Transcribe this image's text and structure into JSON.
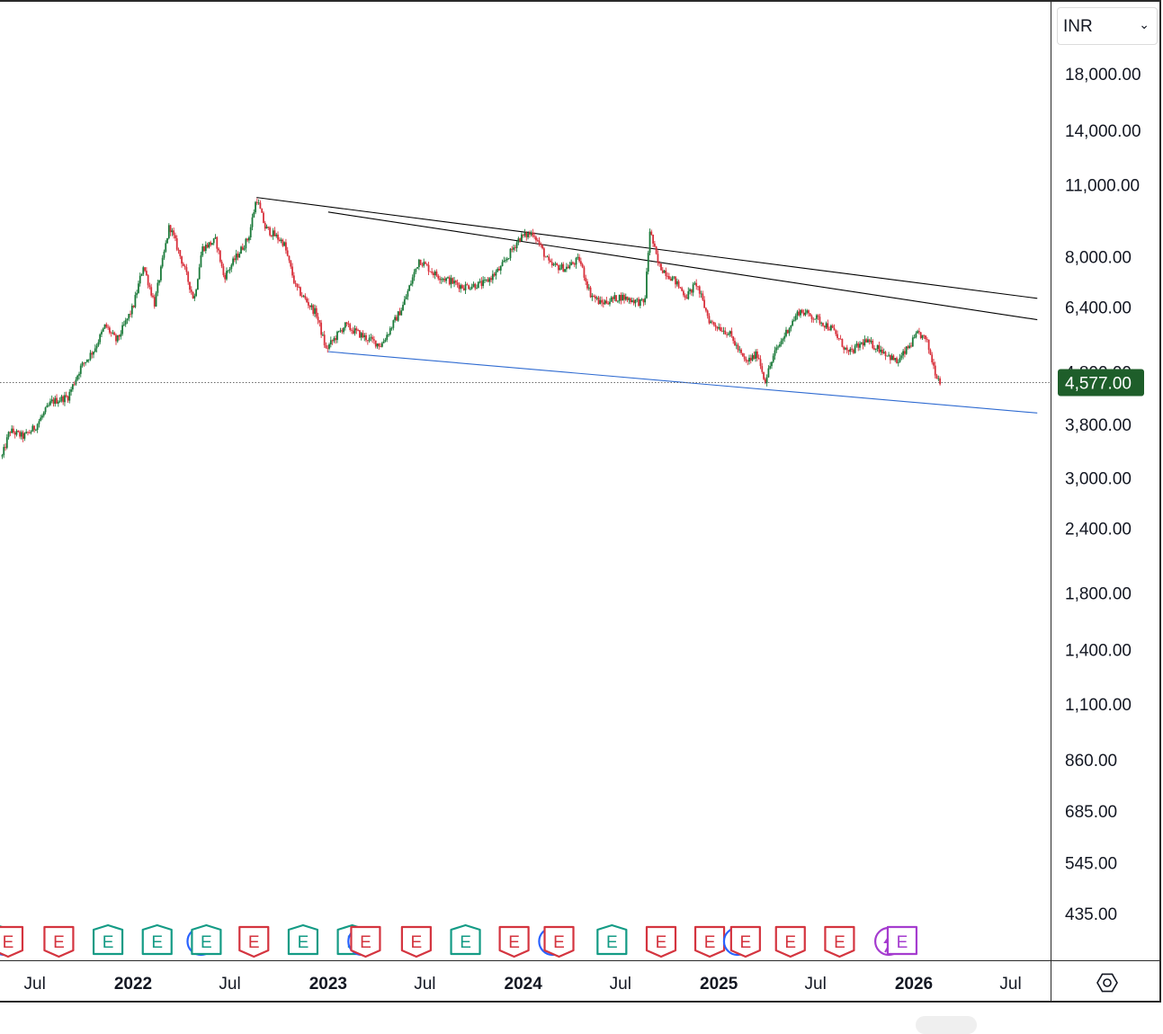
{
  "currency": {
    "value": "INR",
    "chevron_icon": "chevron-down-icon"
  },
  "settings_icon": "gear-icon",
  "price_label": {
    "value": "4,577.00",
    "bg": "#1e5e2a",
    "color": "#ffffff"
  },
  "colors": {
    "up": "#1b7a3a",
    "down": "#d8303b",
    "trend_black": "#000000",
    "trend_blue": "#2f6bd1",
    "earnings_green": "#149b85",
    "earnings_red": "#d4343f",
    "dividend_blue": "#2962ff",
    "split_purple": "#a53ccf",
    "gridline": "#555555"
  },
  "chart_data": {
    "type": "candlestick",
    "scale": "log",
    "currency": "INR",
    "last_price": 4577.0,
    "y_ticks": [
      {
        "value": 18000,
        "label": "18,000.00"
      },
      {
        "value": 14000,
        "label": "14,000.00"
      },
      {
        "value": 11000,
        "label": "11,000.00"
      },
      {
        "value": 8000,
        "label": "8,000.00"
      },
      {
        "value": 6400,
        "label": "6,400.00"
      },
      {
        "value": 4800,
        "label": "4,800.00"
      },
      {
        "value": 3800,
        "label": "3,800.00"
      },
      {
        "value": 3000,
        "label": "3,000.00"
      },
      {
        "value": 2400,
        "label": "2,400.00"
      },
      {
        "value": 1800,
        "label": "1,800.00"
      },
      {
        "value": 1400,
        "label": "1,400.00"
      },
      {
        "value": 1100,
        "label": "1,100.00"
      },
      {
        "value": 860,
        "label": "860.00"
      },
      {
        "value": 685,
        "label": "685.00"
      },
      {
        "value": 545,
        "label": "545.00"
      },
      {
        "value": 435,
        "label": "435.00"
      }
    ],
    "x_ticks": [
      {
        "date": "2021-07-01",
        "label": "Jul",
        "bold": false
      },
      {
        "date": "2022-01-01",
        "label": "2022",
        "bold": true
      },
      {
        "date": "2022-07-01",
        "label": "Jul",
        "bold": false
      },
      {
        "date": "2023-01-01",
        "label": "2023",
        "bold": true
      },
      {
        "date": "2023-07-01",
        "label": "Jul",
        "bold": false
      },
      {
        "date": "2024-01-01",
        "label": "2024",
        "bold": true
      },
      {
        "date": "2024-07-01",
        "label": "Jul",
        "bold": false
      },
      {
        "date": "2025-01-01",
        "label": "2025",
        "bold": true
      },
      {
        "date": "2025-07-01",
        "label": "Jul",
        "bold": false
      },
      {
        "date": "2026-01-01",
        "label": "2026",
        "bold": true
      },
      {
        "date": "2026-07-01",
        "label": "Jul",
        "bold": false
      }
    ],
    "price_path": [
      [
        "2021-05-01",
        3300
      ],
      [
        "2021-05-15",
        3700
      ],
      [
        "2021-06-10",
        3600
      ],
      [
        "2021-07-01",
        3750
      ],
      [
        "2021-08-01",
        4200
      ],
      [
        "2021-09-01",
        4300
      ],
      [
        "2021-09-25",
        4900
      ],
      [
        "2021-10-20",
        5300
      ],
      [
        "2021-11-10",
        5900
      ],
      [
        "2021-12-01",
        5500
      ],
      [
        "2022-01-01",
        6400
      ],
      [
        "2022-01-20",
        7700
      ],
      [
        "2022-02-10",
        6500
      ],
      [
        "2022-03-10",
        9200
      ],
      [
        "2022-04-05",
        7700
      ],
      [
        "2022-04-25",
        6600
      ],
      [
        "2022-05-10",
        8300
      ],
      [
        "2022-06-05",
        8600
      ],
      [
        "2022-06-20",
        7300
      ],
      [
        "2022-07-10",
        7900
      ],
      [
        "2022-08-05",
        8700
      ],
      [
        "2022-08-20",
        10400
      ],
      [
        "2022-09-05",
        9100
      ],
      [
        "2022-10-10",
        8500
      ],
      [
        "2022-11-01",
        7000
      ],
      [
        "2022-12-10",
        6200
      ],
      [
        "2022-12-28",
        5300
      ],
      [
        "2023-02-01",
        5900
      ],
      [
        "2023-03-10",
        5600
      ],
      [
        "2023-04-10",
        5400
      ],
      [
        "2023-05-20",
        6400
      ],
      [
        "2023-06-20",
        7900
      ],
      [
        "2023-07-20",
        7400
      ],
      [
        "2023-09-10",
        7000
      ],
      [
        "2023-10-20",
        7100
      ],
      [
        "2023-11-20",
        7600
      ],
      [
        "2023-12-25",
        8700
      ],
      [
        "2024-01-20",
        8900
      ],
      [
        "2024-02-20",
        7700
      ],
      [
        "2024-03-20",
        7600
      ],
      [
        "2024-04-15",
        7900
      ],
      [
        "2024-05-05",
        6800
      ],
      [
        "2024-05-25",
        6500
      ],
      [
        "2024-07-01",
        6700
      ],
      [
        "2024-08-15",
        6500
      ],
      [
        "2024-08-25",
        9000
      ],
      [
        "2024-09-10",
        7700
      ],
      [
        "2024-10-10",
        7200
      ],
      [
        "2024-11-01",
        6700
      ],
      [
        "2024-11-20",
        7100
      ],
      [
        "2024-12-15",
        6000
      ],
      [
        "2025-01-20",
        5700
      ],
      [
        "2025-02-20",
        5000
      ],
      [
        "2025-03-15",
        5200
      ],
      [
        "2025-03-28",
        4600
      ],
      [
        "2025-04-15",
        5200
      ],
      [
        "2025-05-10",
        5800
      ],
      [
        "2025-06-01",
        6300
      ],
      [
        "2025-07-01",
        6100
      ],
      [
        "2025-08-01",
        5800
      ],
      [
        "2025-09-01",
        5200
      ],
      [
        "2025-10-01",
        5500
      ],
      [
        "2025-11-01",
        5300
      ],
      [
        "2025-12-01",
        5000
      ],
      [
        "2026-01-10",
        5700
      ],
      [
        "2026-01-25",
        5500
      ],
      [
        "2026-02-10",
        4800
      ],
      [
        "2026-02-20",
        4577
      ]
    ],
    "trendlines": [
      {
        "color": "black",
        "from": [
          "2022-08-20",
          10400
        ],
        "to": [
          "2026-08-20",
          6650
        ]
      },
      {
        "color": "black",
        "from": [
          "2023-01-01",
          9750
        ],
        "to": [
          "2026-08-20",
          6050
        ]
      },
      {
        "color": "blue",
        "from": [
          "2023-01-01",
          5250
        ],
        "to": [
          "2026-08-20",
          4000
        ]
      }
    ],
    "events": [
      {
        "date": "2021-04-20",
        "type": "E",
        "color": "green"
      },
      {
        "date": "2021-05-05",
        "type": "D",
        "color": "blue"
      },
      {
        "date": "2021-05-12",
        "type": "E",
        "color": "red"
      },
      {
        "date": "2021-08-15",
        "type": "E",
        "color": "red"
      },
      {
        "date": "2021-11-15",
        "type": "E",
        "color": "green"
      },
      {
        "date": "2022-02-15",
        "type": "E",
        "color": "green"
      },
      {
        "date": "2022-05-08",
        "type": "D",
        "color": "blue"
      },
      {
        "date": "2022-05-18",
        "type": "E",
        "color": "green"
      },
      {
        "date": "2022-08-15",
        "type": "E",
        "color": "red"
      },
      {
        "date": "2022-11-15",
        "type": "E",
        "color": "green"
      },
      {
        "date": "2023-02-15",
        "type": "E",
        "color": "green"
      },
      {
        "date": "2023-03-05",
        "type": "D",
        "color": "blue"
      },
      {
        "date": "2023-03-12",
        "type": "E",
        "color": "red"
      },
      {
        "date": "2023-06-15",
        "type": "E",
        "color": "red"
      },
      {
        "date": "2023-09-15",
        "type": "E",
        "color": "green"
      },
      {
        "date": "2023-12-15",
        "type": "E",
        "color": "red"
      },
      {
        "date": "2024-02-25",
        "type": "D",
        "color": "blue"
      },
      {
        "date": "2024-03-08",
        "type": "E",
        "color": "red"
      },
      {
        "date": "2024-06-15",
        "type": "E",
        "color": "green"
      },
      {
        "date": "2024-09-15",
        "type": "E",
        "color": "red"
      },
      {
        "date": "2024-12-15",
        "type": "E",
        "color": "red"
      },
      {
        "date": "2025-02-05",
        "type": "D",
        "color": "blue"
      },
      {
        "date": "2025-02-20",
        "type": "E",
        "color": "red"
      },
      {
        "date": "2025-05-15",
        "type": "E",
        "color": "red"
      },
      {
        "date": "2025-08-15",
        "type": "E",
        "color": "red"
      },
      {
        "date": "2025-11-15",
        "type": "S",
        "color": "purple"
      },
      {
        "date": "2025-12-10",
        "type": "E",
        "color": "purple"
      }
    ]
  }
}
